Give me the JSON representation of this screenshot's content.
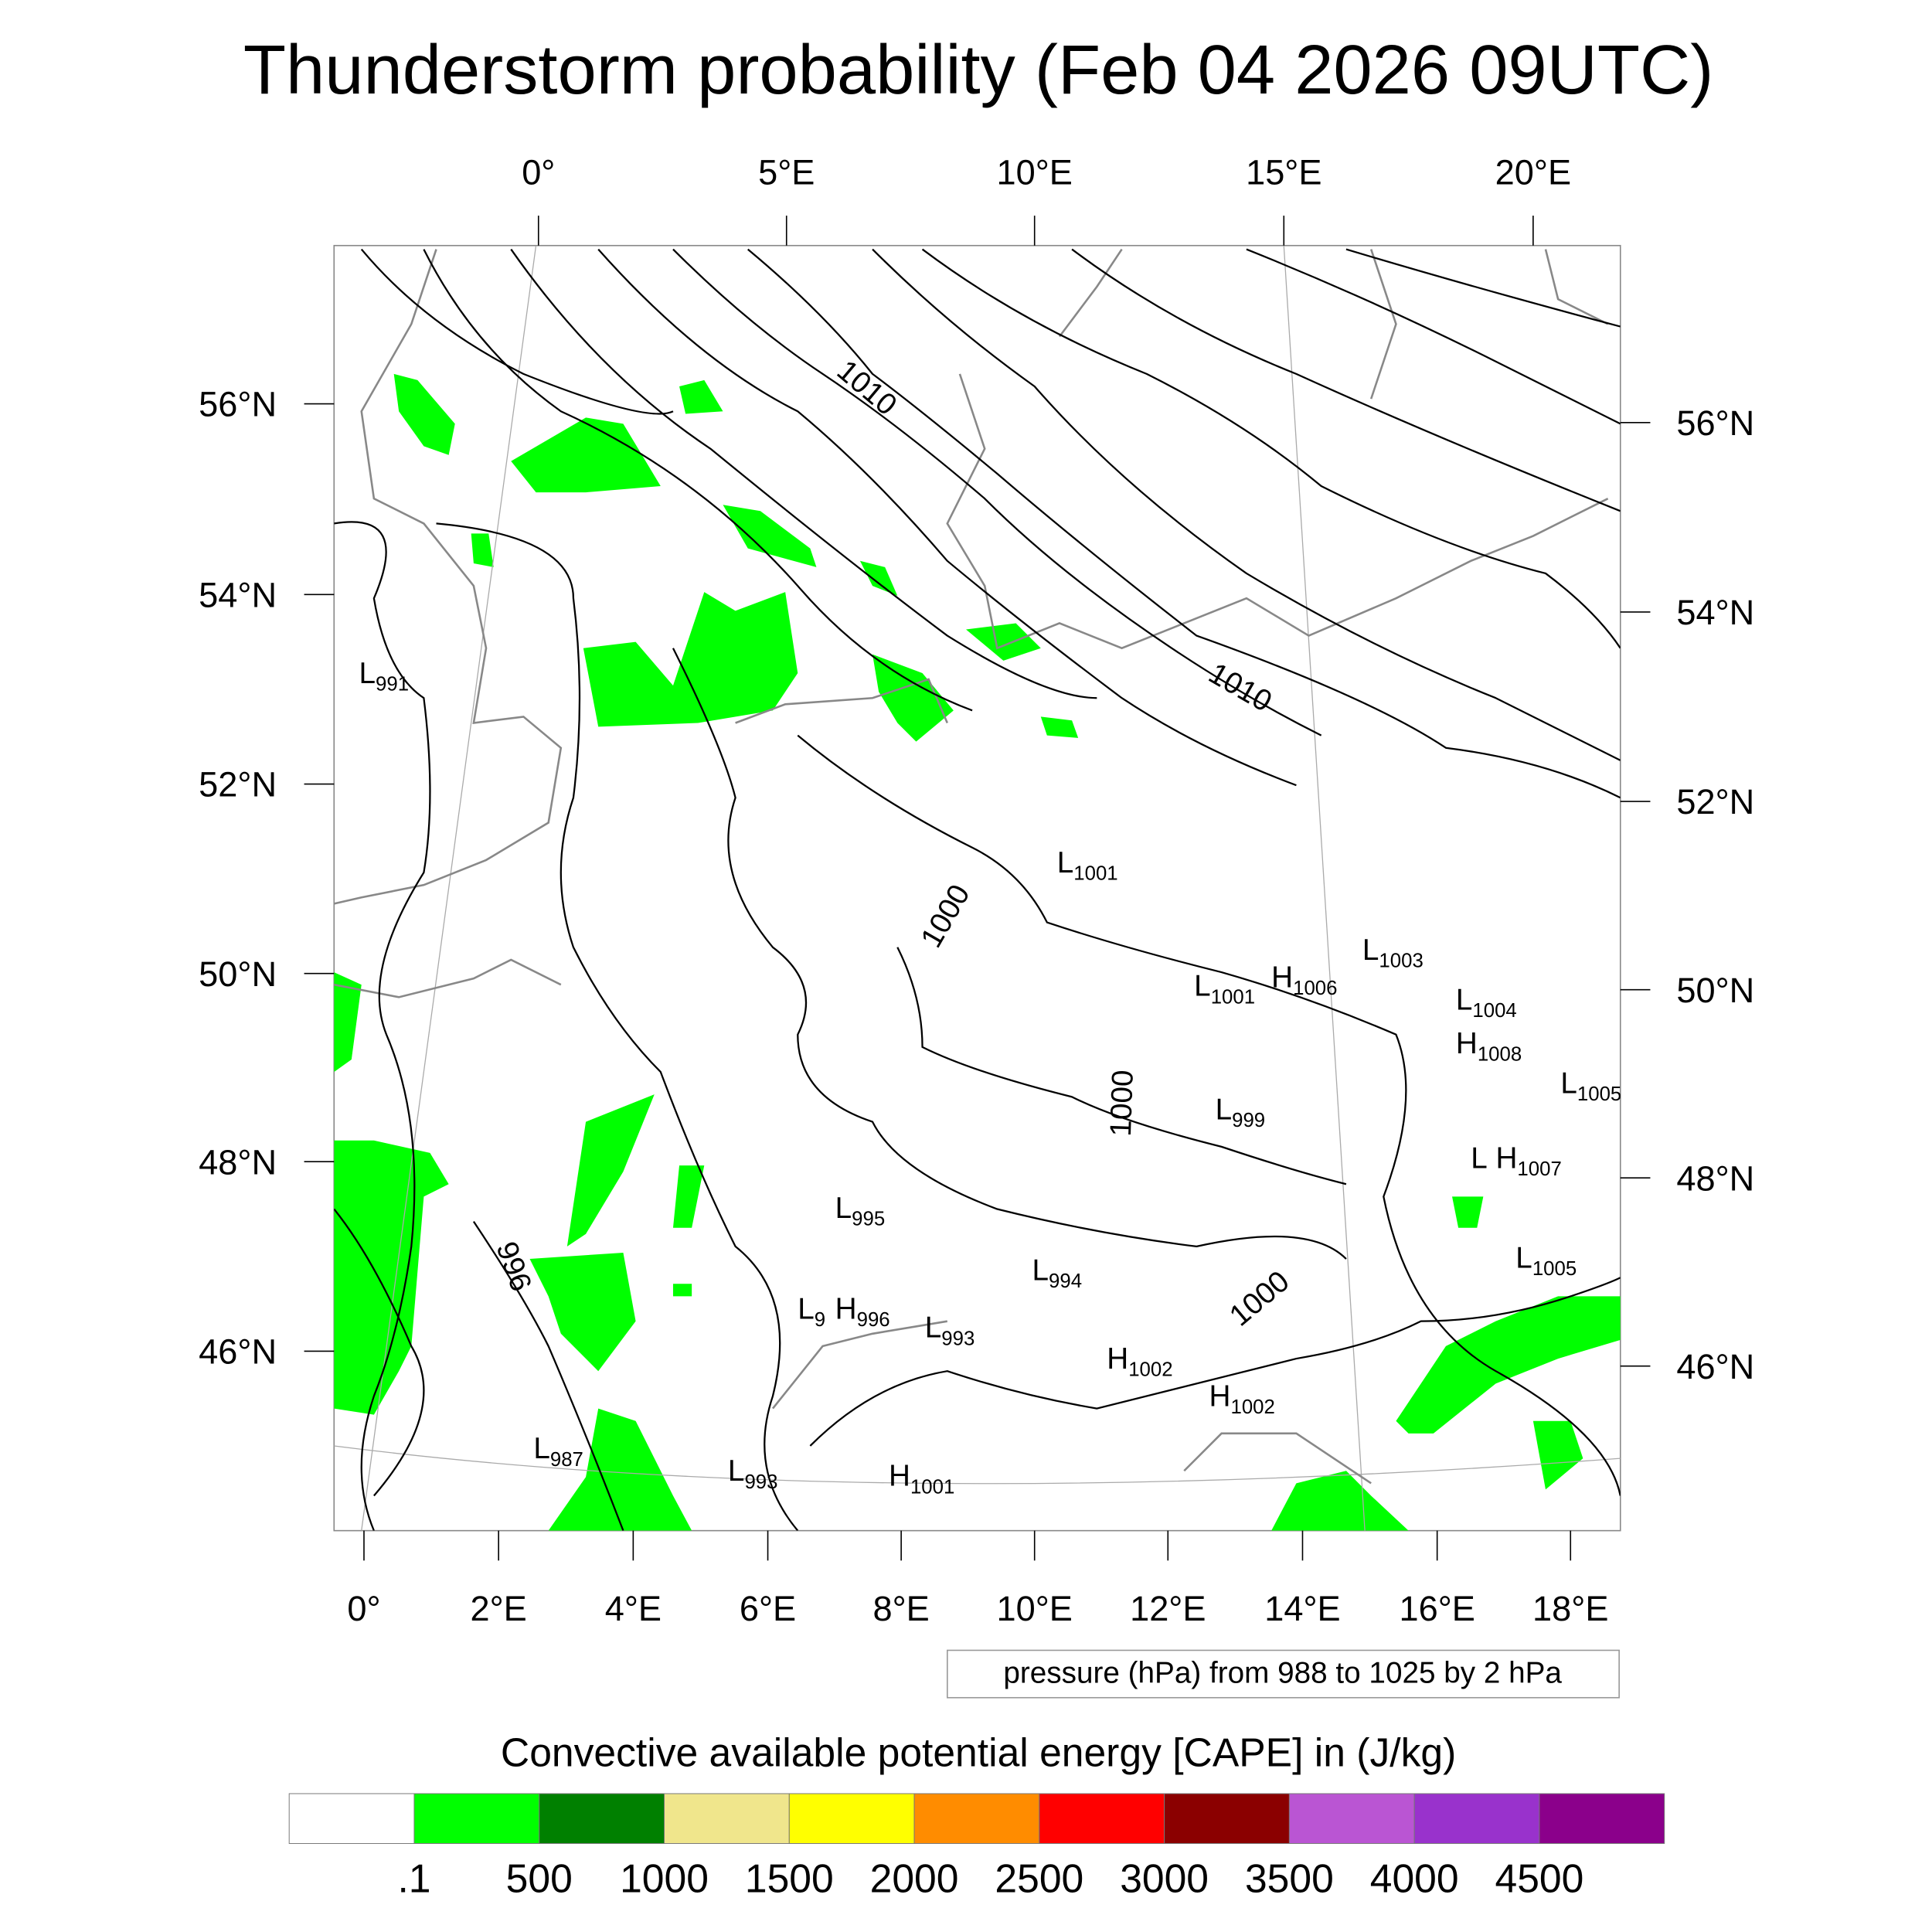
{
  "title": "Thunderstorm probability (Feb 04 2026 09UTC)",
  "top_lon_labels": [
    "0°",
    "5°E",
    "10°E",
    "15°E",
    "20°E"
  ],
  "bottom_lon_labels": [
    "0°",
    "2°E",
    "4°E",
    "6°E",
    "8°E",
    "10°E",
    "12°E",
    "14°E",
    "16°E",
    "18°E"
  ],
  "left_lat_labels": [
    "56°N",
    "54°N",
    "52°N",
    "50°N",
    "48°N",
    "46°N"
  ],
  "right_lat_labels": [
    "56°N",
    "54°N",
    "52°N",
    "50°N",
    "48°N",
    "46°N"
  ],
  "contour_labels": [
    "1010",
    "1010",
    "1000",
    "1000",
    "1000",
    "996"
  ],
  "pressure_centers": [
    {
      "type": "L",
      "value": "991"
    },
    {
      "type": "L",
      "value": "1001"
    },
    {
      "type": "L",
      "value": "1003"
    },
    {
      "type": "L",
      "value": "1001"
    },
    {
      "type": "H",
      "value": "1006"
    },
    {
      "type": "L",
      "value": "1004"
    },
    {
      "type": "H",
      "value": "1008"
    },
    {
      "type": "L",
      "value": "1005"
    },
    {
      "type": "L",
      "value": "999"
    },
    {
      "type": "L",
      "value": ""
    },
    {
      "type": "H",
      "value": "1007"
    },
    {
      "type": "L",
      "value": "995"
    },
    {
      "type": "L",
      "value": "994"
    },
    {
      "type": "L",
      "value": "9"
    },
    {
      "type": "H",
      "value": "996"
    },
    {
      "type": "L",
      "value": "993"
    },
    {
      "type": "H",
      "value": "1002"
    },
    {
      "type": "H",
      "value": "1002"
    },
    {
      "type": "L",
      "value": "1005"
    },
    {
      "type": "L",
      "value": "987"
    },
    {
      "type": "L",
      "value": "993"
    },
    {
      "type": "H",
      "value": "1001"
    }
  ],
  "contour_info": "pressure (hPa) from 988 to 1025 by 2 hPa",
  "colorbar": {
    "title": "Convective available potential energy [CAPE] in (J/kg)",
    "colors": [
      "#ffffff",
      "#00ff00",
      "#008000",
      "#f0e68c",
      "#ffff00",
      "#ff8c00",
      "#ff0000",
      "#8b0000",
      "#ba55d3",
      "#9932cc",
      "#8b008b"
    ],
    "labels": [
      ".1",
      "500",
      "1000",
      "1500",
      "2000",
      "2500",
      "3000",
      "3500",
      "4000",
      "4500"
    ]
  },
  "cape_fill_color": "#00ff00"
}
